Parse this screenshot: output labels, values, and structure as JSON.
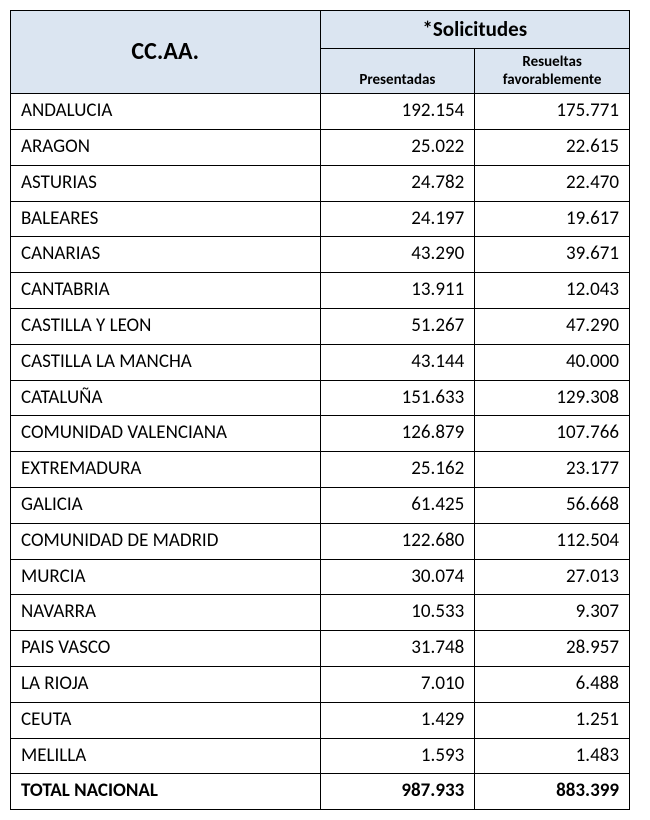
{
  "table": {
    "type": "table",
    "background_color": "#ffffff",
    "header_bg": "#dbe5f1",
    "border_color": "#000000",
    "font_family": "Calibri, Arial, sans-serif",
    "header": {
      "ccaa": "CC.AA.",
      "solicitudes": "*Solicitudes",
      "presentadas": "Presentadas",
      "resueltas": "Resueltas favorablemente"
    },
    "columns": [
      "CC.AA.",
      "Presentadas",
      "Resueltas favorablemente"
    ],
    "column_widths_pct": [
      50,
      25,
      25
    ],
    "rows": [
      {
        "region": "ANDALUCIA",
        "presentadas": "192.154",
        "resueltas": "175.771"
      },
      {
        "region": "ARAGON",
        "presentadas": "25.022",
        "resueltas": "22.615"
      },
      {
        "region": "ASTURIAS",
        "presentadas": "24.782",
        "resueltas": "22.470"
      },
      {
        "region": "BALEARES",
        "presentadas": "24.197",
        "resueltas": "19.617"
      },
      {
        "region": "CANARIAS",
        "presentadas": "43.290",
        "resueltas": "39.671"
      },
      {
        "region": "CANTABRIA",
        "presentadas": "13.911",
        "resueltas": "12.043"
      },
      {
        "region": "CASTILLA Y LEON",
        "presentadas": "51.267",
        "resueltas": "47.290"
      },
      {
        "region": "CASTILLA LA MANCHA",
        "presentadas": "43.144",
        "resueltas": "40.000"
      },
      {
        "region": "CATALUÑA",
        "presentadas": "151.633",
        "resueltas": "129.308"
      },
      {
        "region": "COMUNIDAD VALENCIANA",
        "presentadas": "126.879",
        "resueltas": "107.766"
      },
      {
        "region": "EXTREMADURA",
        "presentadas": "25.162",
        "resueltas": "23.177"
      },
      {
        "region": "GALICIA",
        "presentadas": "61.425",
        "resueltas": "56.668"
      },
      {
        "region": "COMUNIDAD DE MADRID",
        "presentadas": "122.680",
        "resueltas": "112.504"
      },
      {
        "region": "MURCIA",
        "presentadas": "30.074",
        "resueltas": "27.013"
      },
      {
        "region": "NAVARRA",
        "presentadas": "10.533",
        "resueltas": "9.307"
      },
      {
        "region": "PAIS VASCO",
        "presentadas": "31.748",
        "resueltas": "28.957"
      },
      {
        "region": "LA RIOJA",
        "presentadas": "7.010",
        "resueltas": "6.488"
      },
      {
        "region": "CEUTA",
        "presentadas": "1.429",
        "resueltas": "1.251"
      },
      {
        "region": "MELILLA",
        "presentadas": "1.593",
        "resueltas": "1.483"
      }
    ],
    "total": {
      "region": "TOTAL NACIONAL",
      "presentadas": "987.933",
      "resueltas": "883.399"
    },
    "font_sizes": {
      "ccaa_header": 24,
      "solicitudes_header": 21,
      "sub_header": 15,
      "body": 19
    }
  }
}
